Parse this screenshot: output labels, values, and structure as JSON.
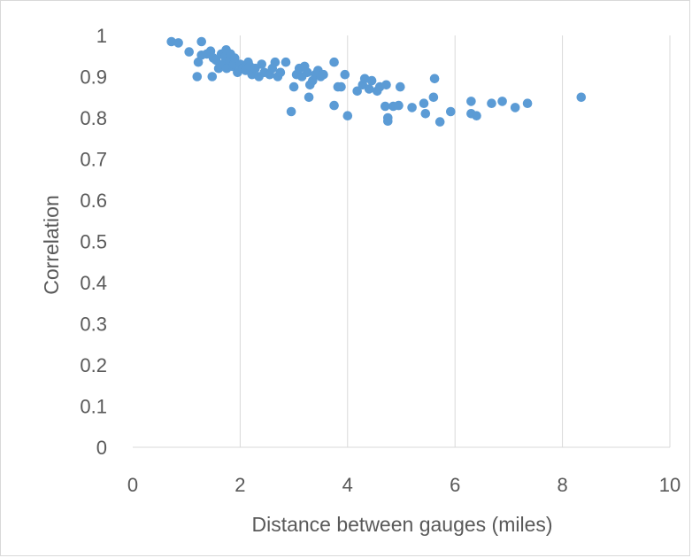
{
  "chart_data": {
    "type": "scatter",
    "title": "",
    "xlabel": "Distance between gauges (miles)",
    "ylabel": "Correlation",
    "xlim": [
      0,
      10
    ],
    "ylim": [
      0,
      1
    ],
    "x_ticks": [
      "0",
      "2",
      "4",
      "6",
      "8",
      "10"
    ],
    "y_ticks": [
      "0",
      "0.1",
      "0.2",
      "0.3",
      "0.4",
      "0.5",
      "0.6",
      "0.7",
      "0.8",
      "0.9",
      "1"
    ],
    "grid": "vertical",
    "legend": "none",
    "marker_color": "#5B9BD5",
    "series": [
      {
        "points": [
          [
            0.72,
            0.985
          ],
          [
            0.85,
            0.982
          ],
          [
            1.05,
            0.96
          ],
          [
            1.28,
            0.985
          ],
          [
            1.2,
            0.9
          ],
          [
            1.22,
            0.935
          ],
          [
            1.28,
            0.952
          ],
          [
            1.38,
            0.955
          ],
          [
            1.45,
            0.962
          ],
          [
            1.5,
            0.945
          ],
          [
            1.48,
            0.9
          ],
          [
            1.55,
            0.94
          ],
          [
            1.6,
            0.92
          ],
          [
            1.65,
            0.955
          ],
          [
            1.68,
            0.93
          ],
          [
            1.72,
            0.948
          ],
          [
            1.74,
            0.965
          ],
          [
            1.75,
            0.92
          ],
          [
            1.8,
            0.94
          ],
          [
            1.82,
            0.955
          ],
          [
            1.86,
            0.925
          ],
          [
            1.88,
            0.93
          ],
          [
            1.9,
            0.945
          ],
          [
            1.95,
            0.91
          ],
          [
            2.0,
            0.93
          ],
          [
            2.05,
            0.92
          ],
          [
            2.1,
            0.915
          ],
          [
            2.15,
            0.935
          ],
          [
            2.18,
            0.925
          ],
          [
            2.22,
            0.905
          ],
          [
            2.28,
            0.92
          ],
          [
            2.35,
            0.9
          ],
          [
            2.4,
            0.93
          ],
          [
            2.45,
            0.91
          ],
          [
            2.55,
            0.905
          ],
          [
            2.6,
            0.92
          ],
          [
            2.65,
            0.935
          ],
          [
            2.7,
            0.9
          ],
          [
            2.75,
            0.91
          ],
          [
            2.85,
            0.935
          ],
          [
            2.95,
            0.815
          ],
          [
            3.0,
            0.875
          ],
          [
            3.05,
            0.905
          ],
          [
            3.1,
            0.92
          ],
          [
            3.15,
            0.9
          ],
          [
            3.2,
            0.925
          ],
          [
            3.25,
            0.91
          ],
          [
            3.28,
            0.85
          ],
          [
            3.3,
            0.88
          ],
          [
            3.35,
            0.89
          ],
          [
            3.4,
            0.905
          ],
          [
            3.45,
            0.915
          ],
          [
            3.5,
            0.9
          ],
          [
            3.55,
            0.905
          ],
          [
            3.75,
            0.935
          ],
          [
            3.75,
            0.83
          ],
          [
            3.82,
            0.875
          ],
          [
            3.88,
            0.875
          ],
          [
            3.95,
            0.905
          ],
          [
            4.0,
            0.805
          ],
          [
            4.18,
            0.865
          ],
          [
            4.28,
            0.88
          ],
          [
            4.32,
            0.895
          ],
          [
            4.4,
            0.87
          ],
          [
            4.45,
            0.89
          ],
          [
            4.55,
            0.865
          ],
          [
            4.6,
            0.875
          ],
          [
            4.7,
            0.828
          ],
          [
            4.72,
            0.88
          ],
          [
            4.75,
            0.8
          ],
          [
            4.75,
            0.792
          ],
          [
            4.85,
            0.828
          ],
          [
            4.95,
            0.83
          ],
          [
            4.98,
            0.875
          ],
          [
            5.2,
            0.825
          ],
          [
            5.42,
            0.835
          ],
          [
            5.45,
            0.81
          ],
          [
            5.6,
            0.85
          ],
          [
            5.62,
            0.895
          ],
          [
            5.72,
            0.79
          ],
          [
            5.92,
            0.815
          ],
          [
            6.3,
            0.84
          ],
          [
            6.3,
            0.81
          ],
          [
            6.4,
            0.805
          ],
          [
            6.68,
            0.835
          ],
          [
            6.88,
            0.84
          ],
          [
            7.12,
            0.825
          ],
          [
            7.35,
            0.835
          ],
          [
            8.35,
            0.85
          ]
        ]
      }
    ]
  }
}
